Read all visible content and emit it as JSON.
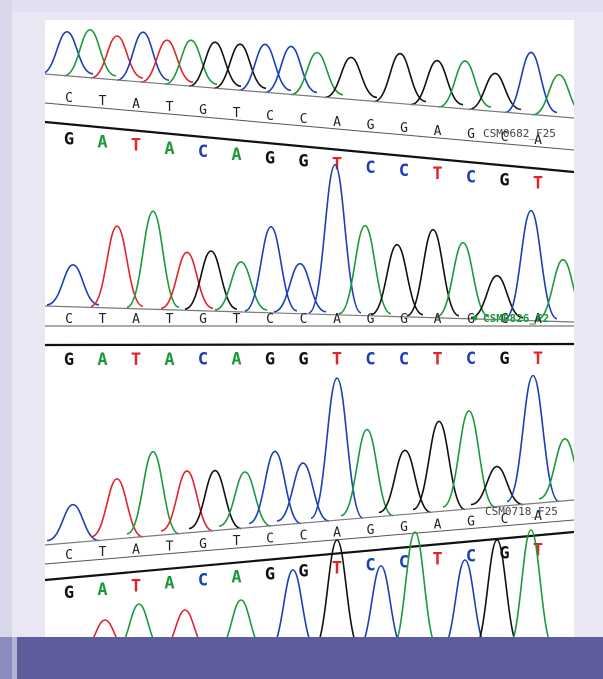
{
  "image": "DNA sequencing chromatogram (three traces)",
  "colors": {
    "A": "#1a9a3a",
    "T": "#e0242a",
    "C": "#1b3fb8",
    "G": "#111111",
    "frame": "#e8e7f3",
    "bottom_bar": "#5d5d9c"
  },
  "panels": [
    {
      "sample_label": "CSM0682_F25",
      "bases_top": [
        "C",
        "T",
        "A",
        "T",
        "G",
        "T",
        "C",
        "C",
        "A",
        "G",
        "G",
        "A",
        "G",
        "C",
        "A"
      ],
      "bases_bottom": [
        "G",
        "A",
        "T",
        "A",
        "C",
        "A",
        "G",
        "G",
        "T",
        "C",
        "C",
        "T",
        "C",
        "G",
        "T"
      ]
    },
    {
      "sample_label": "CSM0826_F2",
      "bases_top": [
        "C",
        "T",
        "A",
        "T",
        "G",
        "T",
        "C",
        "C",
        "A",
        "G",
        "G",
        "A",
        "G",
        "C",
        "A"
      ],
      "bases_bottom": [
        "G",
        "A",
        "T",
        "A",
        "C",
        "A",
        "G",
        "G",
        "T",
        "C",
        "C",
        "T",
        "C",
        "G",
        "T"
      ]
    },
    {
      "sample_label": "CSM0718_F25",
      "bases_top": [
        "C",
        "T",
        "A",
        "T",
        "G",
        "T",
        "C",
        "C",
        "A",
        "G",
        "G",
        "A",
        "G",
        "C",
        "A"
      ],
      "bases_bottom": [
        "G",
        "A",
        "T",
        "A",
        "C",
        "A",
        "G",
        "G",
        "T",
        "C",
        "C",
        "T",
        "C",
        "G",
        "T"
      ]
    }
  ]
}
